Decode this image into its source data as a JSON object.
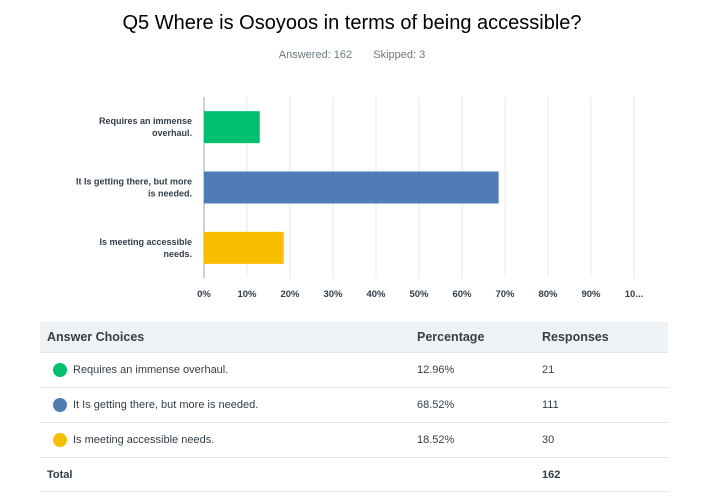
{
  "title": "Q5 Where is Osoyoos in terms of being accessible?",
  "answered_label": "Answered: 162",
  "skipped_label": "Skipped: 3",
  "chart_data": {
    "type": "bar",
    "orientation": "horizontal",
    "categories": [
      "Requires an immense overhaul.",
      "It Is getting there, but more is needed.",
      "Is meeting accessible needs."
    ],
    "category_lines": [
      [
        "Requires an immense",
        "overhaul."
      ],
      [
        "It Is getting there, but more",
        "is needed."
      ],
      [
        "Is meeting accessible",
        "needs."
      ]
    ],
    "values": [
      12.96,
      68.52,
      18.52
    ],
    "colors": [
      "#00bf6f",
      "#507cb6",
      "#f9be00"
    ],
    "xlim": [
      0,
      100
    ],
    "x_ticks": [
      "0%",
      "10%",
      "20%",
      "30%",
      "40%",
      "50%",
      "60%",
      "70%",
      "80%",
      "90%",
      "10..."
    ],
    "grid": true
  },
  "table": {
    "headers": [
      "Answer Choices",
      "Percentage",
      "Responses"
    ],
    "rows": [
      {
        "choice": "Requires an immense overhaul.",
        "percentage": "12.96%",
        "responses": "21",
        "color": "#00bf6f"
      },
      {
        "choice": "It Is getting there, but more is needed.",
        "percentage": "68.52%",
        "responses": "111",
        "color": "#507cb6"
      },
      {
        "choice": "Is meeting accessible needs.",
        "percentage": "18.52%",
        "responses": "30",
        "color": "#f9be00"
      }
    ],
    "total_label": "Total",
    "total_value": "162"
  }
}
